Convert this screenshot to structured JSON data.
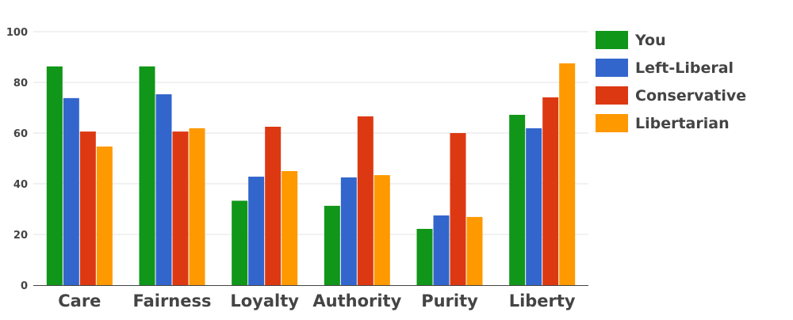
{
  "chart_data": {
    "type": "bar",
    "categories": [
      "Care",
      "Fairness",
      "Loyalty",
      "Authority",
      "Purity",
      "Liberty"
    ],
    "series": [
      {
        "name": "You",
        "color": "#109618",
        "values": [
          86.3,
          86.3,
          33.3,
          31.3,
          22.2,
          67.2
        ]
      },
      {
        "name": "Left-Liberal",
        "color": "#3366cc",
        "values": [
          73.8,
          75.3,
          42.8,
          42.5,
          27.5,
          61.9
        ]
      },
      {
        "name": "Conservative",
        "color": "#dc3912",
        "values": [
          60.6,
          60.6,
          62.5,
          66.6,
          60.0,
          74.1
        ]
      },
      {
        "name": "Libertarian",
        "color": "#ff9900",
        "values": [
          54.7,
          61.9,
          45.0,
          43.4,
          26.9,
          87.5
        ]
      }
    ],
    "yticks": [
      0,
      20,
      40,
      60,
      80,
      100
    ],
    "ylim": [
      0,
      100
    ],
    "grid": true,
    "legend_position": "right",
    "title": "",
    "xlabel": "",
    "ylabel": ""
  }
}
